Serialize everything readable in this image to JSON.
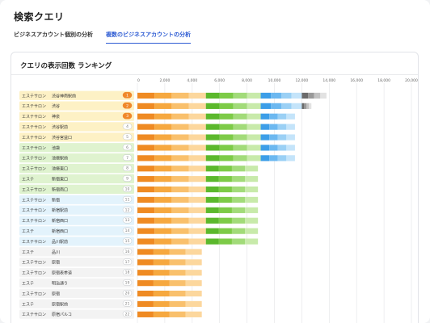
{
  "page": {
    "title": "検索クエリ",
    "tabs": [
      {
        "label": "ビジネスアカウント個別の分析",
        "active": false
      },
      {
        "label": "複数のビジネスアカウントの分析",
        "active": true
      }
    ]
  },
  "card": {
    "title": "クエリの表示回数 ランキング"
  },
  "colors": {
    "yellow_row": "#fdf1c5",
    "green_row": "#dff3cf",
    "blue_row": "#e3f3fc",
    "gray_row": "#f3f3f3",
    "orange_badge": "#f0882a",
    "badge_bg": "#ffffff"
  },
  "chart_data": {
    "type": "bar",
    "orientation": "horizontal",
    "stacked": true,
    "xlim": [
      0,
      20000
    ],
    "xticks": [
      "0",
      "2,000",
      "4,000",
      "6,000",
      "8,000",
      "10,000",
      "12,000",
      "14,000",
      "16,000",
      "18,000",
      "20,000"
    ],
    "rows": [
      {
        "rank": 1,
        "store": "エステサロン",
        "area": "渋谷神南駅前",
        "group": "yellow",
        "total": 13800
      },
      {
        "rank": 2,
        "store": "エステサロン",
        "area": "渋谷",
        "group": "yellow",
        "total": 12700
      },
      {
        "rank": 3,
        "store": "エステサロン",
        "area": "神泉",
        "group": "yellow",
        "total": 11500
      },
      {
        "rank": 4,
        "store": "エステサロン",
        "area": "渋谷駅前",
        "group": "yellow",
        "total": 11500
      },
      {
        "rank": 5,
        "store": "エステサロン",
        "area": "渋谷宮益口",
        "group": "yellow",
        "total": 11500
      },
      {
        "rank": 6,
        "store": "エステサロン",
        "area": "池袋",
        "group": "green",
        "total": 11500
      },
      {
        "rank": 7,
        "store": "エステサロン",
        "area": "池袋駅前",
        "group": "green",
        "total": 11500
      },
      {
        "rank": 8,
        "store": "エステサロン",
        "area": "池袋東口",
        "group": "green",
        "total": 8800
      },
      {
        "rank": 9,
        "store": "エステ",
        "area": "新宿東口",
        "group": "green",
        "total": 8800
      },
      {
        "rank": 10,
        "store": "エステサロン",
        "area": "新宿南口",
        "group": "green",
        "total": 8800
      },
      {
        "rank": 11,
        "store": "エステサロン",
        "area": "新宿",
        "group": "blue",
        "total": 8800
      },
      {
        "rank": 12,
        "store": "エステサロン",
        "area": "新宿駅前",
        "group": "blue",
        "total": 8800
      },
      {
        "rank": 13,
        "store": "エステサロン",
        "area": "新宿西口",
        "group": "blue",
        "total": 8800
      },
      {
        "rank": 14,
        "store": "エステ",
        "area": "新宿西口",
        "group": "blue",
        "total": 8800
      },
      {
        "rank": 15,
        "store": "エステサロン",
        "area": "品川駅前",
        "group": "blue",
        "total": 8800
      },
      {
        "rank": 16,
        "store": "エステ",
        "area": "品川",
        "group": "gray",
        "total": 4700
      },
      {
        "rank": 17,
        "store": "エステサロン",
        "area": "原宿",
        "group": "gray",
        "total": 4700
      },
      {
        "rank": 18,
        "store": "エステサロン",
        "area": "原宿表参道",
        "group": "gray",
        "total": 4700
      },
      {
        "rank": 19,
        "store": "エステ",
        "area": "明治通り",
        "group": "gray",
        "total": 4700
      },
      {
        "rank": 20,
        "store": "エステサロン",
        "area": "原宿",
        "group": "gray",
        "total": 4700
      },
      {
        "rank": 21,
        "store": "エステ",
        "area": "原宿駅前",
        "group": "gray",
        "total": 4700
      },
      {
        "rank": 22,
        "store": "エステサロン",
        "area": "原宿パルコ",
        "group": "gray",
        "total": 4700
      }
    ]
  }
}
